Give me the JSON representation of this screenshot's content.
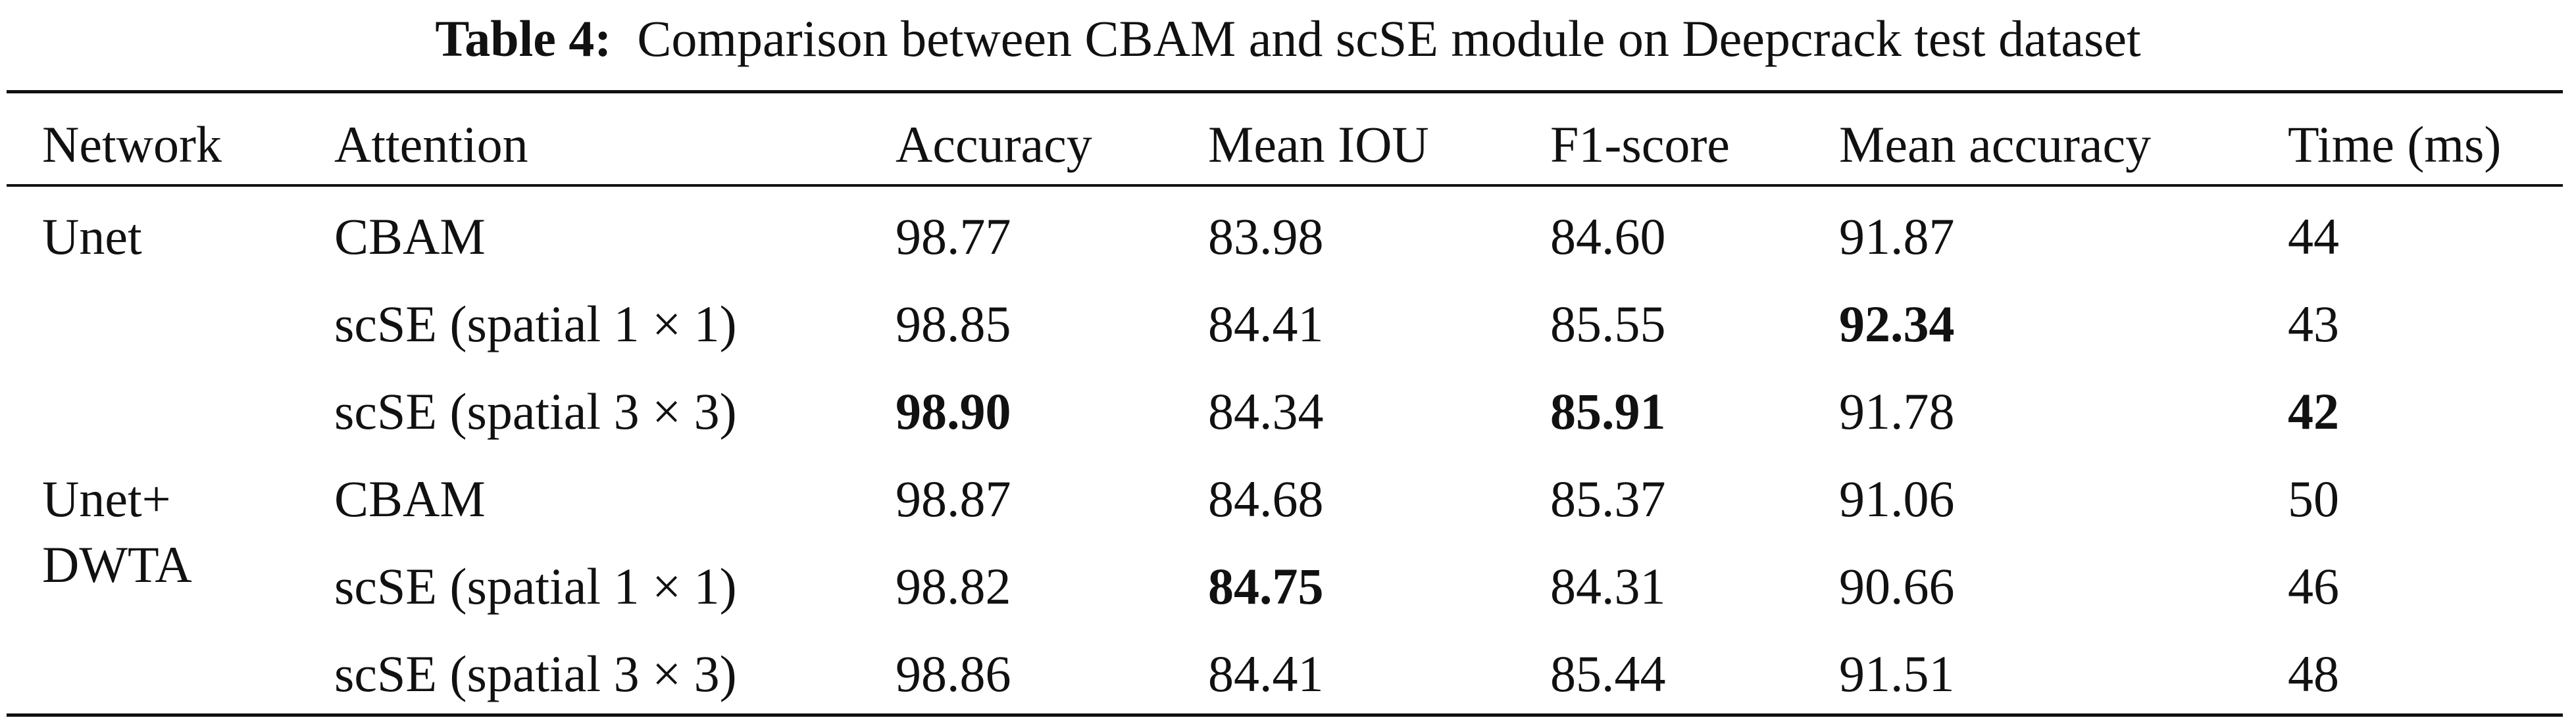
{
  "caption": {
    "label": "Table 4:",
    "text": "Comparison between CBAM and scSE module on Deepcrack test dataset"
  },
  "table": {
    "headers": [
      "Network",
      "Attention",
      "Accuracy",
      "Mean IOU",
      "F1-score",
      "Mean accuracy",
      "Time (ms)"
    ],
    "groups": [
      {
        "network": [
          "Unet"
        ]
      },
      {
        "network": [
          "Unet+",
          "DWTA"
        ]
      }
    ],
    "rows": [
      {
        "attention": "CBAM",
        "accuracy": "98.77",
        "mean_iou": "83.98",
        "f1": "84.60",
        "mean_accuracy": "91.87",
        "time": "44"
      },
      {
        "attention": "scSE (spatial 1 × 1)",
        "accuracy": "98.85",
        "mean_iou": "84.41",
        "f1": "85.55",
        "mean_accuracy": "92.34",
        "time": "43"
      },
      {
        "attention": "scSE (spatial 3 × 3)",
        "accuracy": "98.90",
        "mean_iou": "84.34",
        "f1": "85.91",
        "mean_accuracy": "91.78",
        "time": "42"
      },
      {
        "attention": "CBAM",
        "accuracy": "98.87",
        "mean_iou": "84.68",
        "f1": "85.37",
        "mean_accuracy": "91.06",
        "time": "50"
      },
      {
        "attention": "scSE (spatial 1 × 1)",
        "accuracy": "98.82",
        "mean_iou": "84.75",
        "f1": "84.31",
        "mean_accuracy": "90.66",
        "time": "46"
      },
      {
        "attention": "scSE (spatial 3 × 3)",
        "accuracy": "98.86",
        "mean_iou": "84.41",
        "f1": "85.44",
        "mean_accuracy": "91.51",
        "time": "48"
      }
    ]
  }
}
